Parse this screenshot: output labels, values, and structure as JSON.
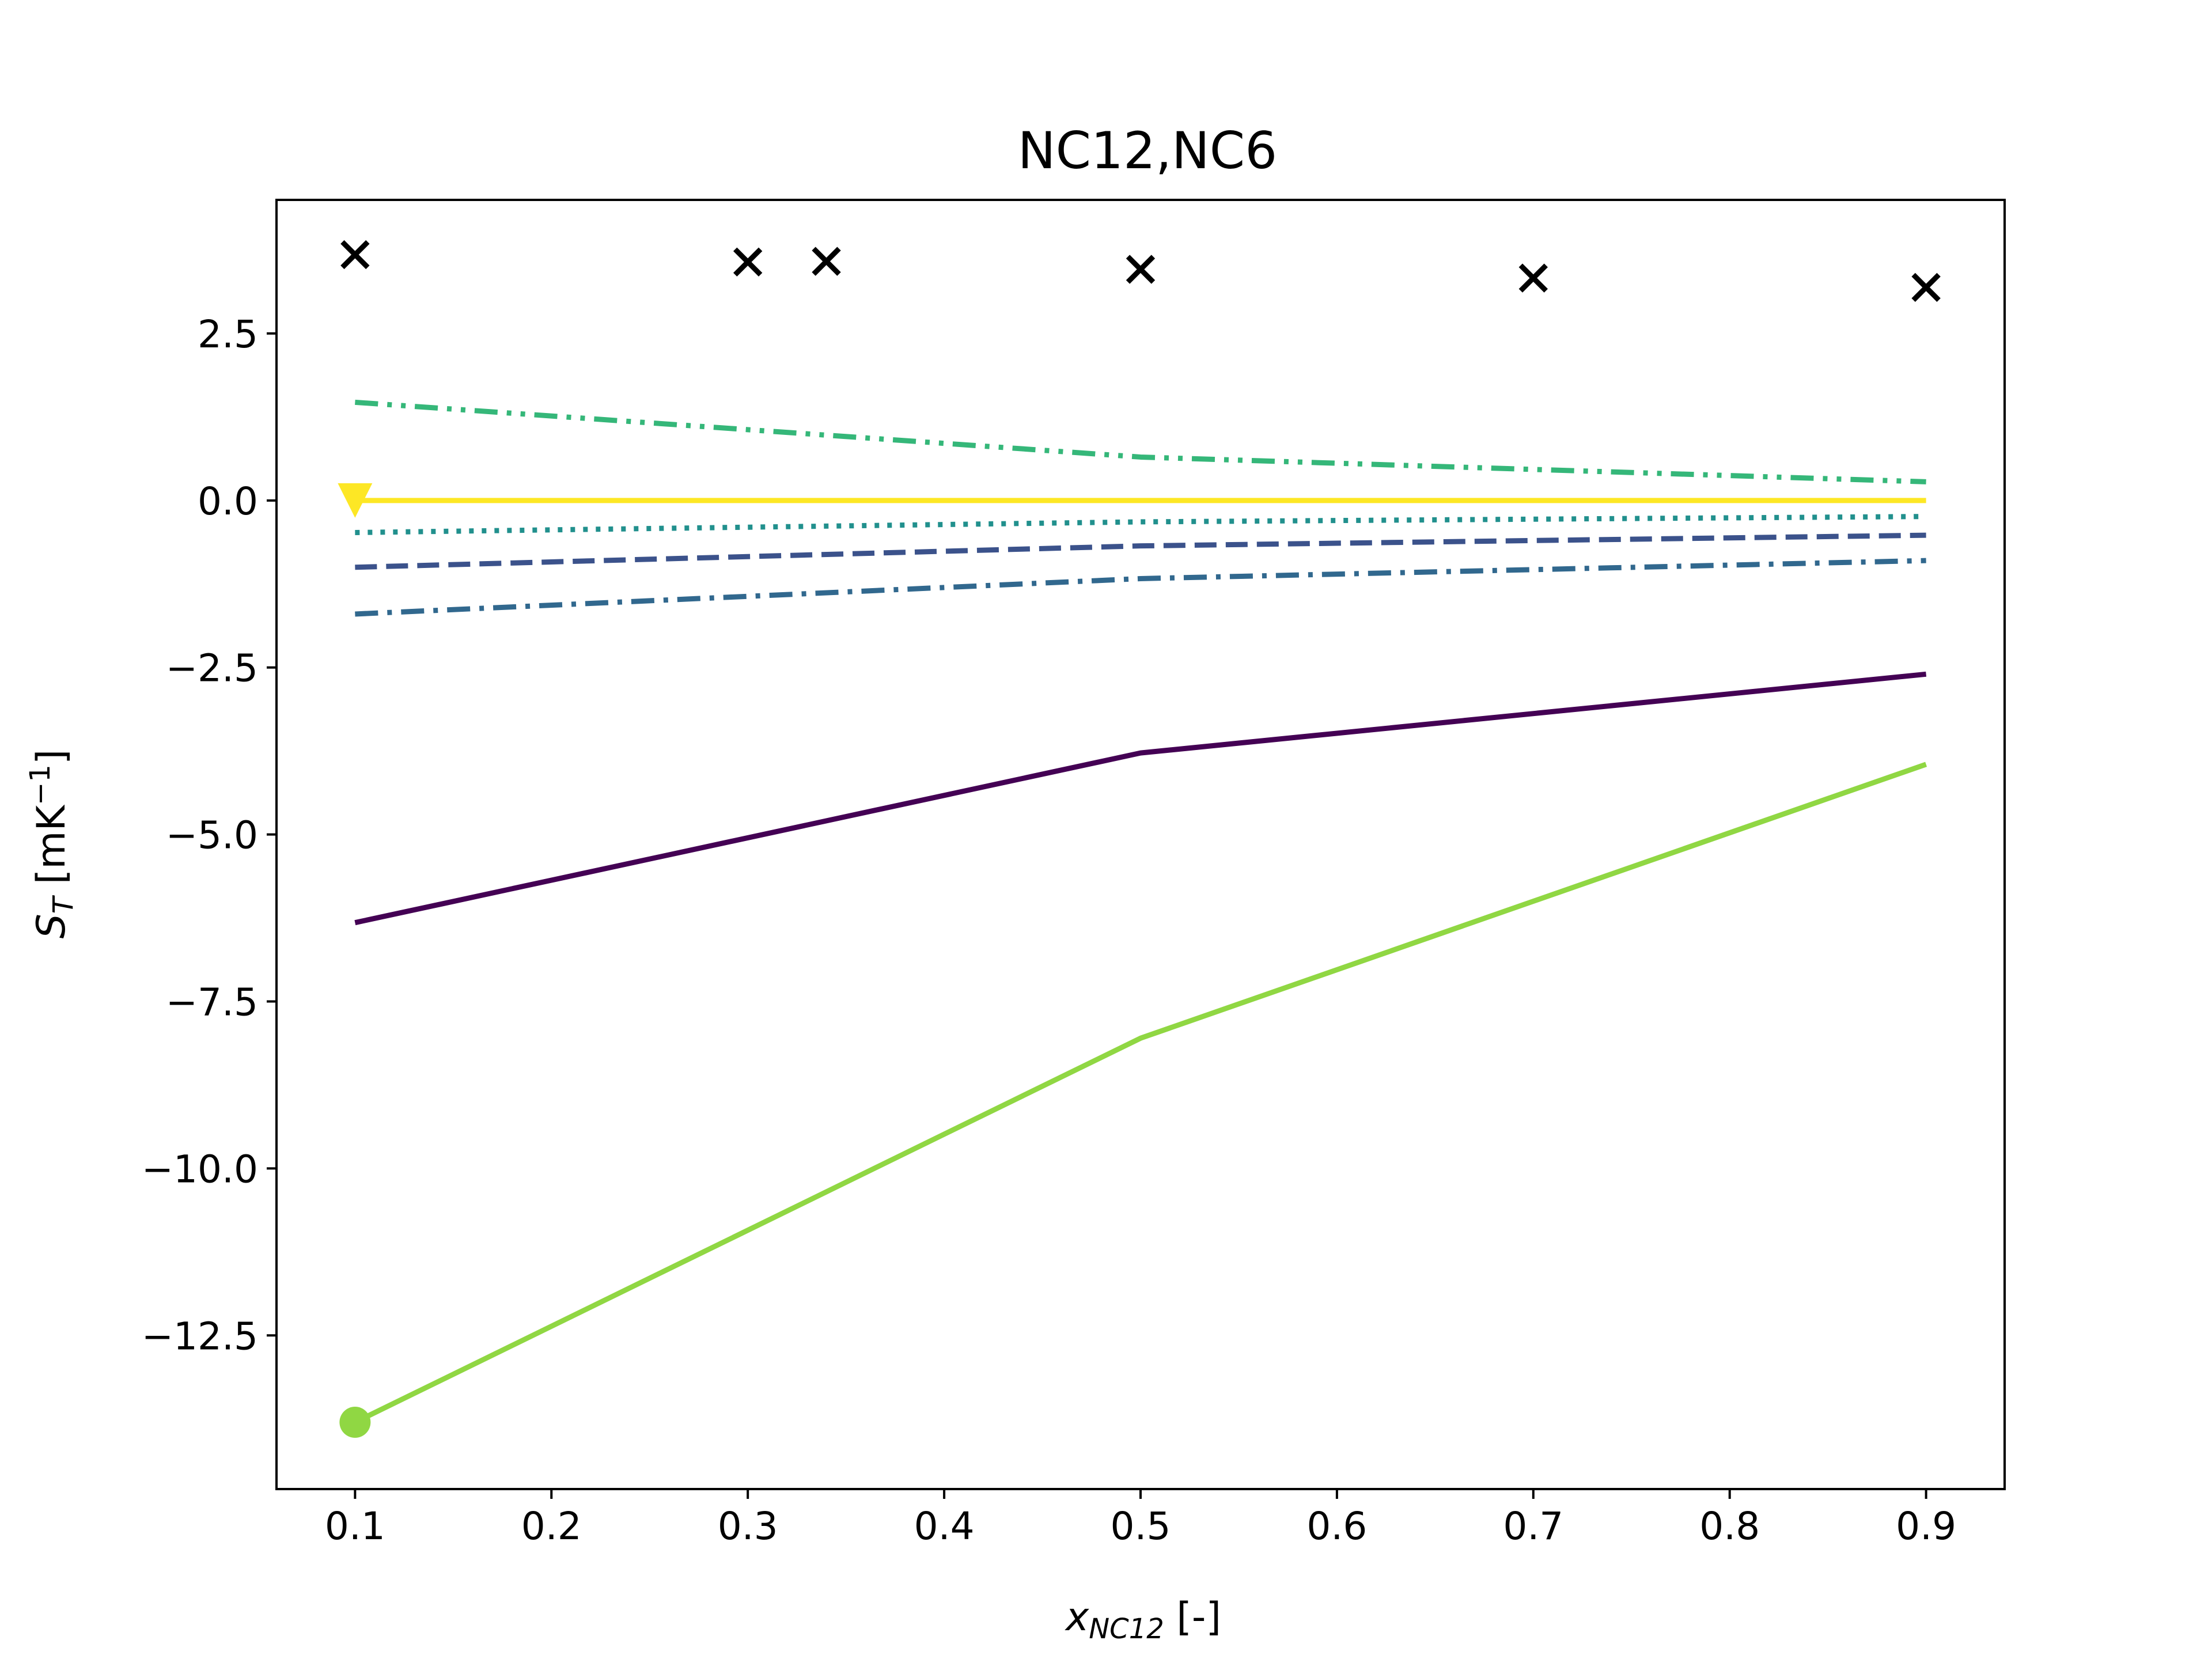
{
  "chart_data": {
    "type": "line",
    "title": "NC12,NC6",
    "xlabel": {
      "main": "x",
      "sub": "NC12",
      "suffix": " [-]"
    },
    "ylabel": {
      "main": "S",
      "sub": "T",
      "suffix": " [mK",
      "sup": "−1",
      "close": "]"
    },
    "xlim": [
      0.06,
      0.94
    ],
    "ylim": [
      -14.8,
      4.5
    ],
    "xticks": [
      0.1,
      0.2,
      0.3,
      0.4,
      0.5,
      0.6,
      0.7,
      0.8,
      0.9
    ],
    "xtick_labels": [
      "0.1",
      "0.2",
      "0.3",
      "0.4",
      "0.5",
      "0.6",
      "0.7",
      "0.8",
      "0.9"
    ],
    "yticks": [
      2.5,
      0.0,
      -2.5,
      -5.0,
      -7.5,
      -10.0,
      -12.5
    ],
    "ytick_labels": [
      "2.5",
      "0.0",
      "−2.5",
      "−5.0",
      "−7.5",
      "−10.0",
      "−12.5"
    ],
    "grid": false,
    "series": [
      {
        "color": "#440154",
        "dash": "solid",
        "x": [
          0.1,
          0.5,
          0.9
        ],
        "y": [
          -6.32,
          -3.78,
          -2.6
        ]
      },
      {
        "color": "#3b528b",
        "dash": "dashed",
        "x": [
          0.1,
          0.5,
          0.9
        ],
        "y": [
          -1.0,
          -0.68,
          -0.52
        ]
      },
      {
        "color": "#31688e",
        "dash": "dashdot",
        "x": [
          0.1,
          0.5,
          0.9
        ],
        "y": [
          -1.7,
          -1.17,
          -0.9
        ]
      },
      {
        "color": "#21908d",
        "dash": "dotted",
        "x": [
          0.1,
          0.5,
          0.9
        ],
        "y": [
          -0.48,
          -0.32,
          -0.24
        ]
      },
      {
        "color": "#35b779",
        "dash": "dashdotdot",
        "x": [
          0.1,
          0.5,
          0.9
        ],
        "y": [
          1.47,
          0.65,
          0.28
        ]
      },
      {
        "color": "#90d743",
        "dash": "solid",
        "marker": "circle",
        "x": [
          0.1,
          0.5,
          0.9
        ],
        "y": [
          -13.8,
          -8.05,
          -3.95
        ]
      },
      {
        "color": "#fde725",
        "dash": "solid",
        "marker": "triangle-down",
        "x": [
          0.1,
          0.5,
          0.9
        ],
        "y": [
          0.0,
          0.0,
          0.0
        ]
      },
      {
        "color": "#000000",
        "dash": "none",
        "marker": "x",
        "x": [
          0.1,
          0.3,
          0.34,
          0.5,
          0.7,
          0.9
        ],
        "y": [
          3.68,
          3.57,
          3.58,
          3.46,
          3.33,
          3.19
        ]
      }
    ]
  }
}
